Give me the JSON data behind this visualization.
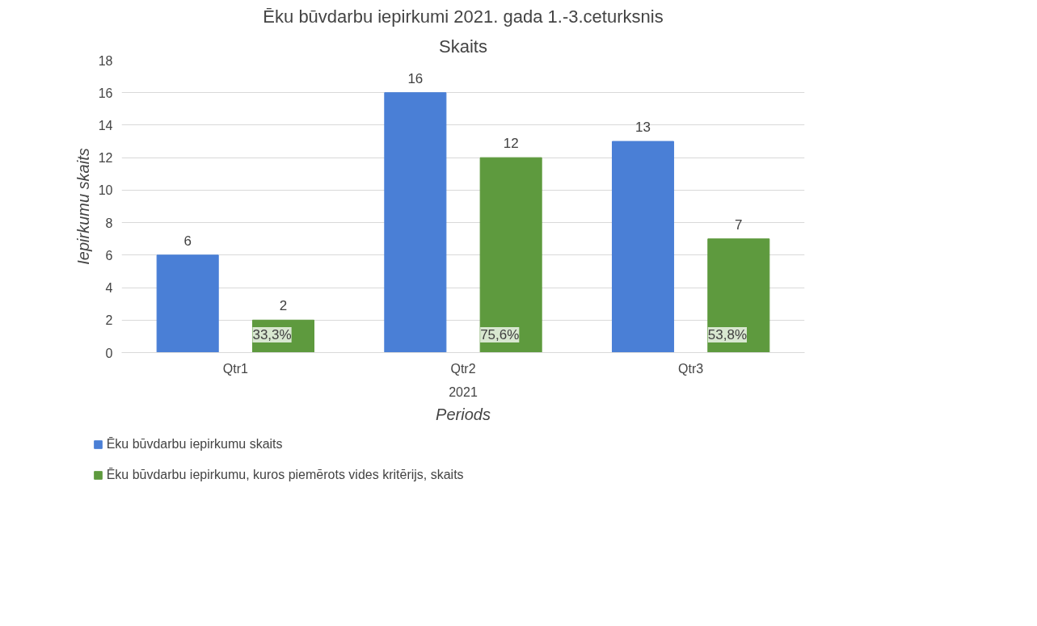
{
  "chart_data": {
    "type": "bar",
    "title": "Ēku būvdarbu iepirkumi 2021. gada 1.-3.ceturksnis",
    "subtitle": "Skaits",
    "xlabel": "Periods",
    "ylabel": "Iepirkumu skaits",
    "categories": [
      "Qtr1",
      "Qtr2",
      "Qtr3"
    ],
    "series": [
      {
        "name": "Ēku būvdarbu iepirkumu skaits",
        "color": "#4a7fd6",
        "values": [
          6,
          16,
          13
        ]
      },
      {
        "name": "Ēku būvdarbu iepirkumu, kuros piemērots vides kritērijs, skaits",
        "color": "#5e9a3e",
        "values": [
          2,
          12,
          7
        ]
      }
    ],
    "ylim": [
      0,
      18
    ],
    "yticks": [
      0,
      2,
      4,
      6,
      8,
      10,
      12,
      14,
      16,
      18
    ],
    "grid": "y",
    "legend": "bottom",
    "data_labels": true,
    "annotations": [
      "33,3%",
      "75,6%",
      "53,8%",
      "2021"
    ]
  }
}
